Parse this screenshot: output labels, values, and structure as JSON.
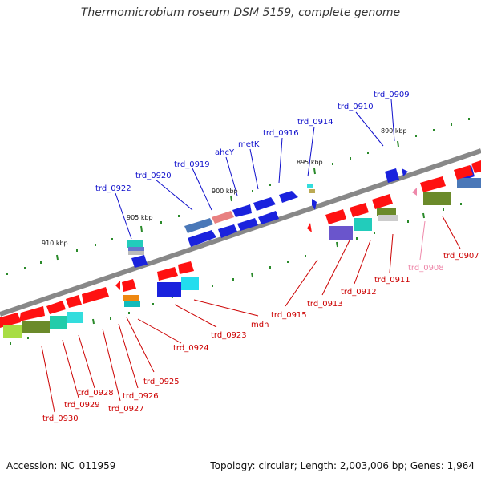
{
  "title": "Thermomicrobium roseum DSM 5159, complete genome",
  "footer": {
    "accession": "Accession: NC_011959",
    "stats": "Topology: circular; Length: 2,003,006 bp; Genes: 1,964"
  },
  "colors": {
    "forward_label": "#1010cc",
    "reverse_label": "#cc0000",
    "pink_label": "#ee88aa",
    "backbone": "#888888",
    "tick": "#2a8a2a"
  },
  "scale_labels": [
    "910 kbp",
    "905 kbp",
    "900 kbp",
    "895 kbp",
    "890 kbp"
  ],
  "forward_genes": [
    "trd_0922",
    "trd_0920",
    "trd_0919",
    "ahcY",
    "metK",
    "trd_0916",
    "trd_0914",
    "trd_0910",
    "trd_0909"
  ],
  "reverse_genes": [
    "trd_0930",
    "trd_0929",
    "trd_0928",
    "trd_0927",
    "trd_0926",
    "trd_0925",
    "trd_0924",
    "trd_0923",
    "mdh",
    "trd_0915",
    "trd_0913",
    "trd_0912",
    "trd_0911",
    "trd_0908",
    "trd_0907"
  ]
}
